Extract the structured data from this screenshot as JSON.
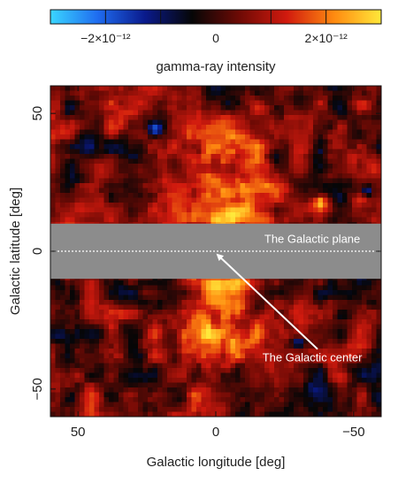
{
  "chart_data": {
    "type": "heatmap",
    "title": "",
    "xlabel": "Galactic longitude [deg]",
    "ylabel": "Galactic latitude [deg]",
    "xlim": [
      60,
      -60
    ],
    "ylim": [
      -60,
      60
    ],
    "x_ticks": [
      {
        "value": 50,
        "label": "50"
      },
      {
        "value": 0,
        "label": "0"
      },
      {
        "value": -50,
        "label": "−50"
      }
    ],
    "y_ticks": [
      {
        "value": 50,
        "label": "50"
      },
      {
        "value": 0,
        "label": "0"
      },
      {
        "value": -50,
        "label": "−50"
      }
    ],
    "colorbar": {
      "label": "gamma-ray intensity",
      "range": [
        -3e-12,
        3e-12
      ],
      "stops": [
        "#3ad6ff",
        "#1f6cf0",
        "#0a1a8c",
        "#060606",
        "#6e0a05",
        "#d11a0e",
        "#ff8a10",
        "#ffe83a"
      ],
      "ticks": [
        {
          "value": -2e-12,
          "label": "−2×10⁻¹²"
        },
        {
          "value": 0,
          "label": "0"
        },
        {
          "value": 2e-12,
          "label": "2×10⁻¹²"
        }
      ],
      "minor_ticks": [
        -2e-12,
        -1e-12,
        1e-12,
        2e-12
      ]
    },
    "masked_band": {
      "b_min": -10,
      "b_max": 10,
      "color": "#8c8c8c"
    },
    "annotations": [
      {
        "text": "The Galactic plane",
        "x": -35,
        "y": 3
      },
      {
        "text": "The Galactic center",
        "x": -35,
        "y": -40,
        "arrow_to": {
          "x": 0,
          "y": 0
        }
      }
    ],
    "features": [
      {
        "type": "bubble",
        "l_center": -2,
        "b_center": 28,
        "l_halfwidth": 22,
        "b_halfwidth": 22,
        "strength": 1.0
      },
      {
        "type": "bubble",
        "l_center": 0,
        "b_center": -30,
        "l_halfwidth": 20,
        "b_halfwidth": 20,
        "strength": 0.95
      },
      {
        "type": "spot",
        "l": 22,
        "b": 44,
        "sign": -1
      },
      {
        "type": "spot",
        "l": -38,
        "b": 18,
        "sign": 1
      },
      {
        "type": "spot",
        "l": -55,
        "b": 22,
        "sign": -1
      },
      {
        "type": "spot",
        "l": -30,
        "b": -33,
        "sign": -1
      }
    ]
  }
}
